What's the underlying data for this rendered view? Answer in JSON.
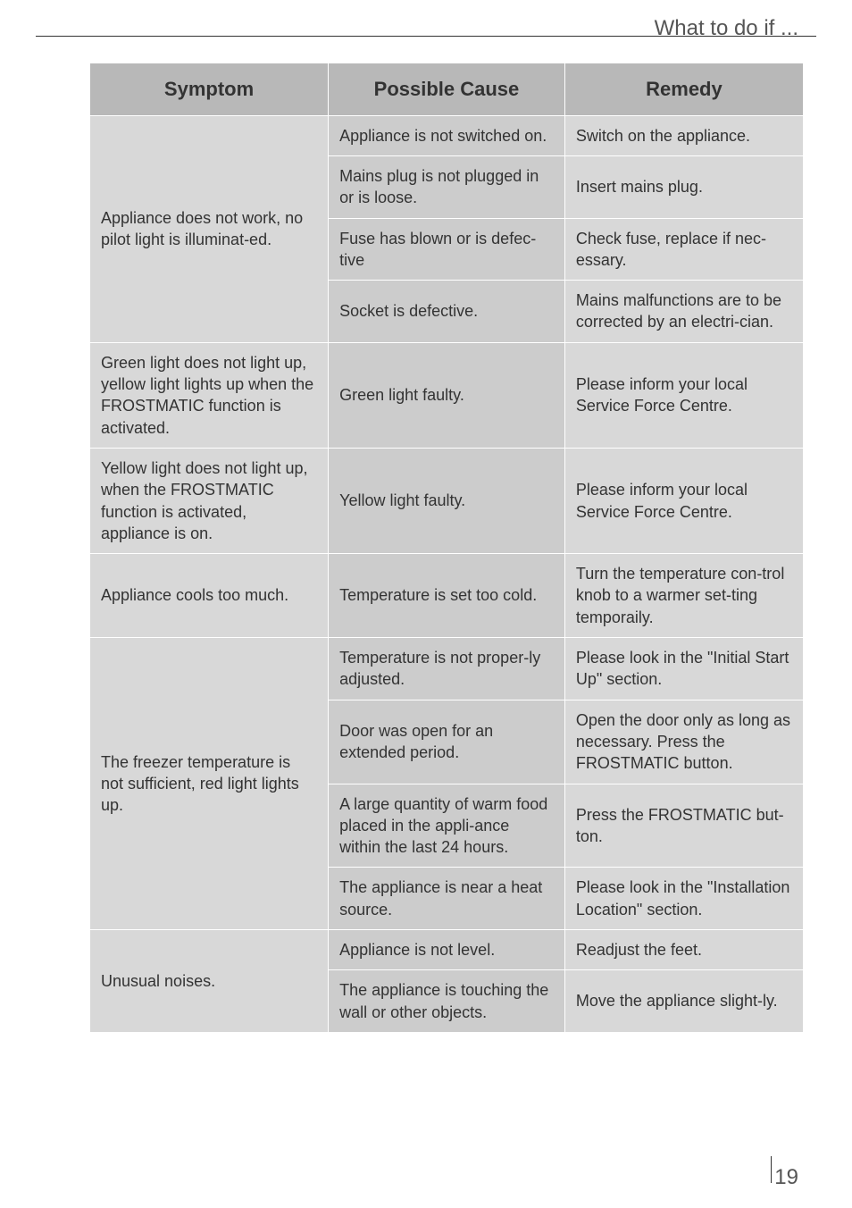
{
  "header": "What to do if ...",
  "page_number": "19",
  "columns": [
    "Symptom",
    "Possible Cause",
    "Remedy"
  ],
  "rows": [
    {
      "s": "Appliance does not work, no pilot light is illuminat-ed.",
      "rs": 4,
      "c": "Appliance is not switched on.",
      "r": "Switch on the appliance."
    },
    {
      "c": "Mains plug is not plugged in or is loose.",
      "r": "Insert mains plug."
    },
    {
      "c": "Fuse has blown or is defec-tive",
      "r": "Check fuse, replace if nec-essary."
    },
    {
      "c": "Socket is defective.",
      "r": "Mains malfunctions are to be corrected by an electri-cian."
    },
    {
      "s": "Green light does not light up, yellow light lights up when the FROSTMATIC function is activated.",
      "rs": 1,
      "c": "Green light faulty.",
      "r": "Please inform your local Service Force Centre."
    },
    {
      "s": "Yellow light does not light up, when the FROSTMATIC function is activated, appliance is on.",
      "rs": 1,
      "c": "Yellow light faulty.",
      "r": "Please inform your local Service Force Centre."
    },
    {
      "s": "Appliance cools too much.",
      "rs": 1,
      "c": "Temperature is set too cold.",
      "r": "Turn the temperature con-trol knob to a warmer set-ting temporaily."
    },
    {
      "s": "The freezer temperature is not sufficient, red light lights up.",
      "rs": 4,
      "c": "Temperature is not proper-ly adjusted.",
      "r": "Please look in the \"Initial Start Up\" section."
    },
    {
      "c": "Door was open for an extended period.",
      "r": "Open the door only as long as necessary. Press the FROSTMATIC button."
    },
    {
      "c": "A large quantity of warm food placed in the appli-ance within the last 24 hours.",
      "r": "Press the FROSTMATIC but-ton."
    },
    {
      "c": "The appliance is near a heat source.",
      "r": "Please look in the \"Installation Location\" section."
    },
    {
      "s": "Unusual noises.",
      "rs": 2,
      "c": "Appliance is not level.",
      "r": "Readjust the feet."
    },
    {
      "c": "The appliance is touching the wall or other objects.",
      "r": "Move the appliance slight-ly."
    }
  ]
}
